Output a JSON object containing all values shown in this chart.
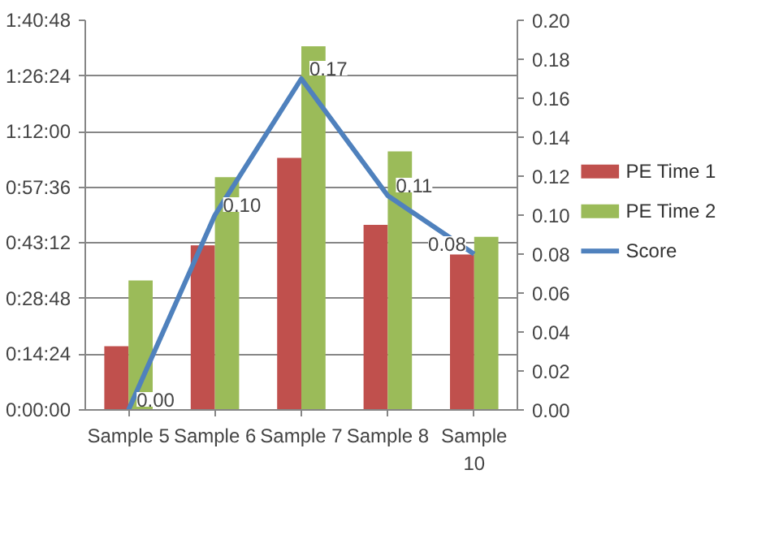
{
  "chart_data": {
    "type": "bar",
    "categories": [
      "Sample 5",
      "Sample 6",
      "Sample 7",
      "Sample 8",
      "Sample 10"
    ],
    "series": [
      {
        "name": "PE Time 1",
        "color": "#c0504d",
        "values": [
          16.5,
          42.6,
          65.2,
          47.9,
          40.2
        ]
      },
      {
        "name": "PE Time 2",
        "color": "#9bbb59",
        "values": [
          33.5,
          60.2,
          94.1,
          66.9,
          44.8
        ]
      },
      {
        "name": "Score",
        "type": "line",
        "axis": "y2",
        "color": "#4f81bd",
        "values": [
          0.0,
          0.1,
          0.17,
          0.11,
          0.08
        ],
        "value_labels": [
          "0.00",
          "0.10",
          "0.17",
          "0.11",
          "0.08"
        ]
      }
    ],
    "ylim": [
      0,
      100.8
    ],
    "yticks": [
      {
        "value": 0,
        "label": "0:00:00"
      },
      {
        "value": 14.4,
        "label": "0:14:24"
      },
      {
        "value": 28.8,
        "label": "0:28:48"
      },
      {
        "value": 43.2,
        "label": "0:43:12"
      },
      {
        "value": 57.6,
        "label": "0:57:36"
      },
      {
        "value": 72,
        "label": "1:12:00"
      },
      {
        "value": 86.4,
        "label": "1:26:24"
      },
      {
        "value": 100.8,
        "label": "1:40:48"
      }
    ],
    "y2lim": [
      0,
      0.2
    ],
    "y2ticks": [
      {
        "value": 0,
        "label": "0.00"
      },
      {
        "value": 0.02,
        "label": "0.02"
      },
      {
        "value": 0.04,
        "label": "0.04"
      },
      {
        "value": 0.06,
        "label": "0.06"
      },
      {
        "value": 0.08,
        "label": "0.08"
      },
      {
        "value": 0.1,
        "label": "0.10"
      },
      {
        "value": 0.12,
        "label": "0.12"
      },
      {
        "value": 0.14,
        "label": "0.14"
      },
      {
        "value": 0.16,
        "label": "0.16"
      },
      {
        "value": 0.18,
        "label": "0.18"
      },
      {
        "value": 0.2,
        "label": "0.20"
      }
    ],
    "grid": "y",
    "legend": "right"
  }
}
